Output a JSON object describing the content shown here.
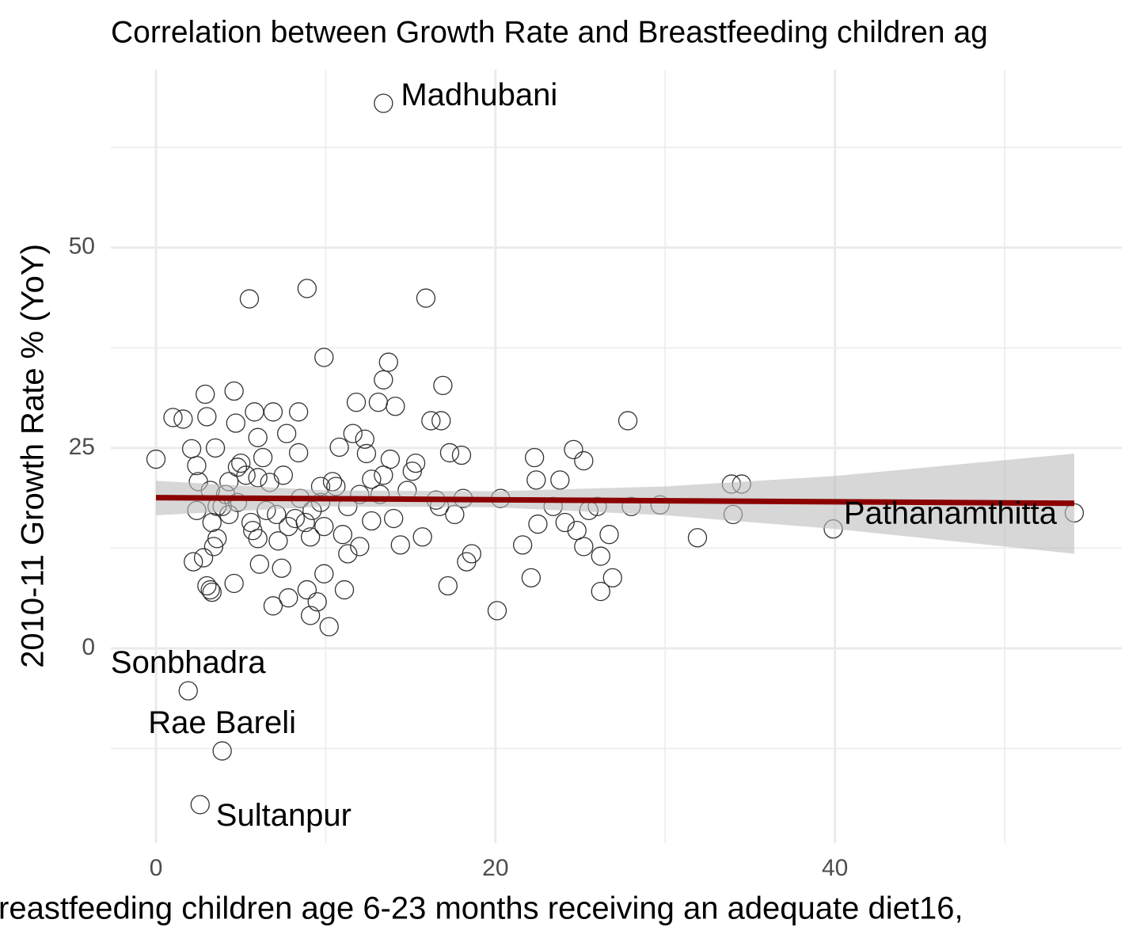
{
  "chart_data": {
    "type": "scatter",
    "title": "Correlation between Growth Rate and Breastfeeding children ag",
    "x_label": "reastfeeding children age 6-23 months receiving an adequate diet16,",
    "y_label": "2010-11 Growth Rate % (YoY)",
    "xlim": [
      -2.66,
      56.9
    ],
    "ylim": [
      -24.3,
      72.2
    ],
    "xticks": [
      0,
      20,
      40
    ],
    "yticks": [
      0,
      25,
      50
    ],
    "x_minor_grid": [
      10,
      30,
      50
    ],
    "y_minor_grid": [
      -12.5,
      12.5,
      37.5,
      62.5
    ],
    "grid": true,
    "color": "#333333",
    "trend_color": "#8b0000",
    "band_color": "#bdbdbd",
    "points": {
      "x": [
        0,
        1.0,
        1.6,
        2.1,
        2.2,
        2.4,
        2.5,
        2.4,
        2.9,
        3.0,
        2.8,
        3.0,
        3.2,
        3.3,
        3.2,
        3.3,
        3.5,
        3.4,
        3.6,
        3.9,
        4.1,
        4.3,
        4.6,
        4.6,
        4.7,
        4.8,
        5.0,
        5.3,
        5.5,
        5.6,
        5.8,
        6.0,
        6.0,
        6.1,
        6.3,
        6.5,
        6.9,
        6.9,
        7.2,
        7.4,
        7.5,
        7.7,
        7.8,
        8.2,
        8.4,
        8.4,
        8.9,
        8.9,
        9.1,
        9.1,
        9.5,
        9.7,
        9.9,
        9.9,
        10.2,
        10.4,
        10.8,
        11.0,
        11.1,
        11.3,
        11.6,
        11.8,
        12.0,
        12.3,
        12.4,
        12.7,
        13.1,
        13.4,
        13.7,
        13.8,
        14.0,
        14.1,
        14.4,
        15.1,
        15.3,
        15.7,
        15.9,
        16.2,
        16.5,
        16.7,
        16.8,
        16.9,
        17.2,
        17.3,
        17.6,
        18.0,
        18.1,
        18.3,
        18.6,
        20.1,
        20.3,
        21.6,
        22.1,
        22.3,
        22.4,
        22.5,
        23.4,
        23.8,
        24.1,
        24.6,
        24.8,
        25.2,
        25.2,
        25.5,
        26.0,
        26.2,
        26.2,
        26.7,
        26.9,
        27.8,
        28.0,
        29.7,
        31.9,
        33.9,
        34.0,
        34.5,
        39.9,
        4.8,
        5.7,
        6.7,
        7.1,
        7.8,
        8.5,
        9.2,
        9.7,
        10.6,
        11.3,
        12.0,
        12.7,
        13.2,
        13.4,
        14.8,
        8.8,
        9.9,
        6.0,
        3.6,
        4.3
      ],
      "y": [
        23.6,
        28.8,
        28.6,
        24.9,
        10.8,
        22.8,
        20.8,
        17.2,
        31.7,
        28.9,
        11.3,
        7.8,
        7.3,
        7.0,
        19.7,
        15.7,
        25.0,
        12.7,
        13.7,
        17.7,
        19.2,
        16.7,
        8.1,
        32.1,
        28.1,
        22.6,
        23.1,
        21.6,
        43.6,
        15.7,
        29.5,
        26.3,
        21.3,
        10.5,
        23.8,
        17.2,
        29.5,
        5.3,
        13.4,
        10.0,
        21.6,
        26.8,
        6.3,
        16.2,
        29.5,
        24.4,
        44.9,
        7.3,
        13.9,
        4.1,
        5.8,
        20.2,
        36.3,
        9.3,
        2.7,
        20.8,
        25.1,
        14.2,
        7.3,
        11.8,
        26.8,
        30.7,
        12.7,
        26.1,
        24.3,
        15.9,
        30.7,
        33.5,
        35.7,
        23.6,
        16.2,
        30.2,
        12.9,
        22.1,
        23.1,
        13.9,
        43.7,
        28.4,
        18.5,
        17.7,
        28.4,
        32.8,
        7.8,
        24.4,
        16.7,
        24.1,
        18.7,
        10.8,
        11.8,
        4.7,
        18.7,
        12.9,
        8.8,
        23.8,
        21.0,
        15.5,
        17.7,
        21.0,
        15.7,
        24.8,
        14.7,
        23.4,
        12.7,
        17.2,
        17.7,
        11.5,
        7.1,
        14.2,
        8.8,
        28.4,
        17.7,
        17.9,
        13.8,
        20.5,
        16.7,
        20.5,
        14.9,
        18.2,
        14.7,
        20.7,
        16.7,
        15.2,
        18.7,
        17.2,
        18.2,
        20.2,
        17.7,
        19.2,
        21.1,
        19.2,
        21.6,
        19.7,
        15.7,
        15.2,
        13.7,
        17.7,
        20.8
      ]
    },
    "labeled_points": {
      "x": [
        13.4,
        54.1,
        1.9,
        3.9,
        2.6
      ],
      "y": [
        68.0,
        16.9,
        -5.3,
        -12.8,
        -19.5
      ],
      "labels": [
        "Madhubani",
        "Pathanamthitta",
        "Sonbhadra",
        "Rae Bareli",
        "Sultanpur"
      ]
    },
    "trend": {
      "x": [
        0,
        54.1
      ],
      "y": [
        18.8,
        18.1
      ]
    },
    "band": {
      "x": [
        0,
        10,
        20,
        30,
        40,
        54.1
      ],
      "lower": [
        16.6,
        17.7,
        17.6,
        16.6,
        14.9,
        11.8
      ],
      "upper": [
        20.9,
        19.7,
        19.6,
        20.2,
        21.5,
        24.3
      ]
    }
  }
}
